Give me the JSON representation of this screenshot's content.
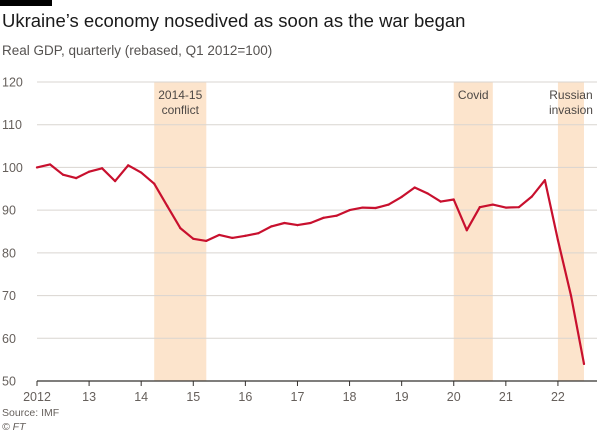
{
  "header": {
    "title": "Ukraine’s economy nosedived as soon as the war began",
    "subtitle": "Real GDP, quarterly (rebased, Q1 2012=100)"
  },
  "footer": {
    "source": "Source: IMF",
    "credit": "© FT"
  },
  "colors": {
    "line": "#c8102e",
    "band": "#fce4cc",
    "grid": "#d9d5d0",
    "axis": "#33302e",
    "text": "#66605c"
  },
  "chart_data": {
    "type": "line",
    "title": "Ukraine’s economy nosedived as soon as the war began",
    "subtitle": "Real GDP, quarterly (rebased, Q1 2012=100)",
    "xlabel": "",
    "ylabel": "",
    "xlim": [
      2012.0,
      2022.75
    ],
    "ylim": [
      50,
      120
    ],
    "yticks": [
      50,
      60,
      70,
      80,
      90,
      100,
      110,
      120
    ],
    "xticks": [
      {
        "value": 2012,
        "label": "2012"
      },
      {
        "value": 2013,
        "label": "13"
      },
      {
        "value": 2014,
        "label": "14"
      },
      {
        "value": 2015,
        "label": "15"
      },
      {
        "value": 2016,
        "label": "16"
      },
      {
        "value": 2017,
        "label": "17"
      },
      {
        "value": 2018,
        "label": "18"
      },
      {
        "value": 2019,
        "label": "19"
      },
      {
        "value": 2020,
        "label": "20"
      },
      {
        "value": 2021,
        "label": "21"
      },
      {
        "value": 2022,
        "label": "22"
      }
    ],
    "grid": true,
    "bands": [
      {
        "from": 2014.25,
        "to": 2015.25,
        "label": [
          "2014-15",
          "conflict"
        ]
      },
      {
        "from": 2020.0,
        "to": 2020.75,
        "label": [
          "Covid"
        ]
      },
      {
        "from": 2022.0,
        "to": 2022.5,
        "label": [
          "Russian",
          "invasion"
        ]
      }
    ],
    "series": [
      {
        "x": [
          2012.0,
          2012.25,
          2012.5,
          2012.75,
          2013.0,
          2013.25,
          2013.5,
          2013.75,
          2014.0,
          2014.25,
          2014.5,
          2014.75,
          2015.0,
          2015.25,
          2015.5,
          2015.75,
          2016.0,
          2016.25,
          2016.5,
          2016.75,
          2017.0,
          2017.25,
          2017.5,
          2017.75,
          2018.0,
          2018.25,
          2018.5,
          2018.75,
          2019.0,
          2019.25,
          2019.5,
          2019.75,
          2020.0,
          2020.25,
          2020.5,
          2020.75,
          2021.0,
          2021.25,
          2021.5,
          2021.75,
          2022.0,
          2022.25,
          2022.5
        ],
        "values": [
          100.0,
          100.7,
          98.3,
          97.5,
          99.0,
          99.8,
          96.8,
          100.5,
          98.8,
          96.2,
          91.0,
          85.8,
          83.3,
          82.8,
          84.2,
          83.5,
          84.0,
          84.6,
          86.2,
          87.0,
          86.5,
          87.0,
          88.2,
          88.7,
          90.0,
          90.6,
          90.5,
          91.3,
          93.1,
          95.3,
          93.9,
          92.0,
          92.5,
          85.3,
          90.7,
          91.3,
          90.6,
          90.7,
          93.2,
          97.0,
          83.0,
          70.0,
          54.0
        ]
      }
    ]
  }
}
